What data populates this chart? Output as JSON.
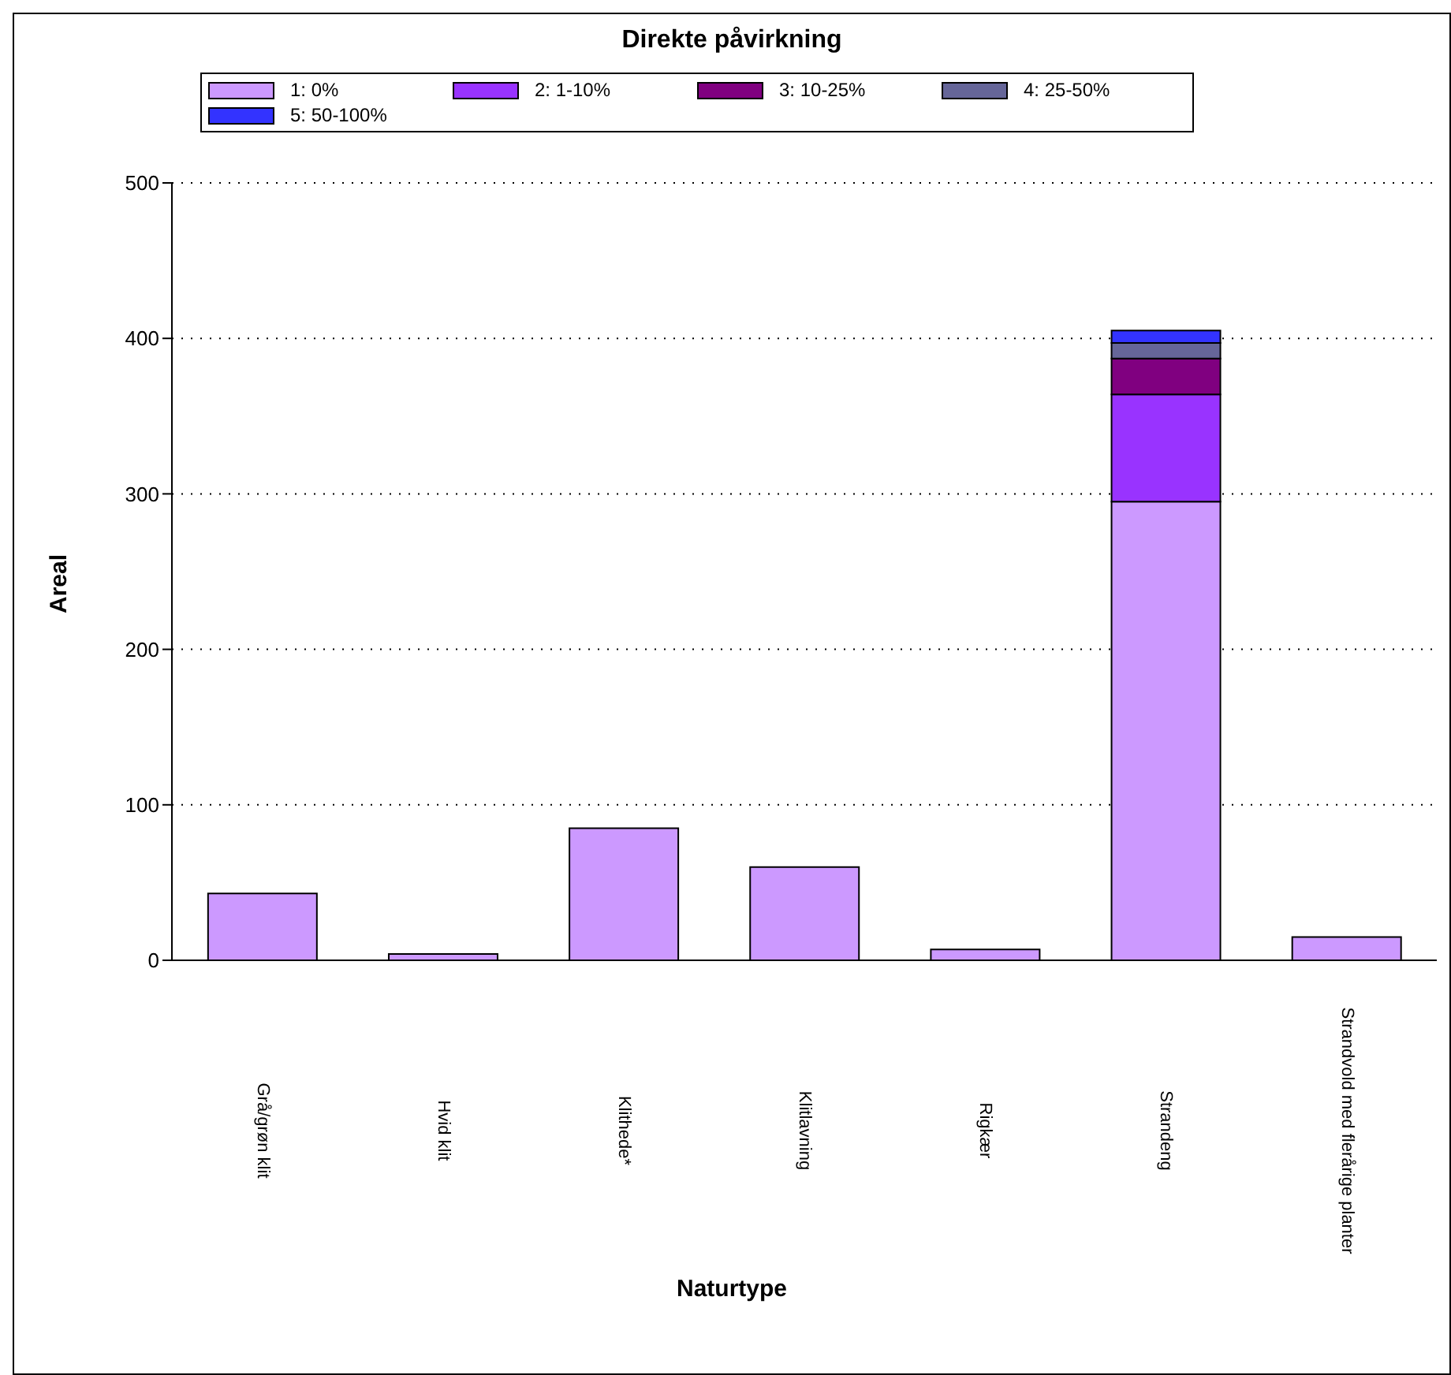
{
  "chart_data": {
    "type": "bar",
    "title": "Direkte påvirkning",
    "xlabel": "Naturtype",
    "ylabel": "Areal",
    "categories": [
      "Grå/grøn klit",
      "Hvid klit",
      "Klithede*",
      "Klitlavning",
      "Rigkær",
      "Strandeng",
      "Strandvold med flerårige planter"
    ],
    "stacked": true,
    "series": [
      {
        "name": "1: 0%",
        "color": "#cc99ff",
        "values": [
          43,
          4,
          85,
          60,
          7,
          295,
          15
        ]
      },
      {
        "name": "2: 1-10%",
        "color": "#9933ff",
        "values": [
          0,
          0,
          0,
          0,
          0,
          69,
          0
        ]
      },
      {
        "name": "3: 10-25%",
        "color": "#800080",
        "values": [
          0,
          0,
          0,
          0,
          0,
          23,
          0
        ]
      },
      {
        "name": "4: 25-50%",
        "color": "#666699",
        "values": [
          0,
          0,
          0,
          0,
          0,
          10,
          0
        ]
      },
      {
        "name": "5: 50-100%",
        "color": "#3333ff",
        "values": [
          0,
          0,
          0,
          0,
          0,
          8,
          0
        ]
      }
    ],
    "ylim": [
      0,
      500
    ],
    "yticks": [
      0,
      100,
      200,
      300,
      400,
      500
    ],
    "grid": "y",
    "legend": "top"
  }
}
